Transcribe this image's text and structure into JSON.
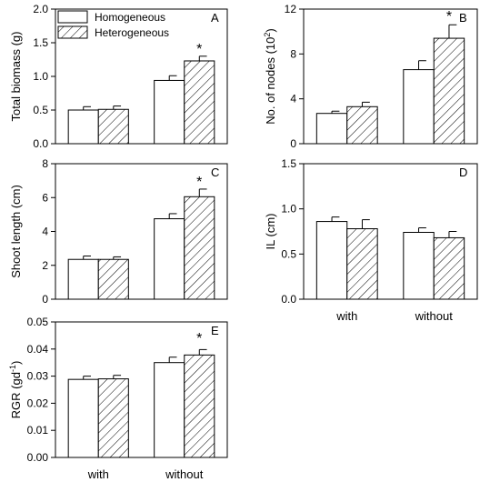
{
  "legend": {
    "entries": [
      {
        "label": "Homogeneous",
        "pattern": "open"
      },
      {
        "label": "Heterogeneous",
        "pattern": "hatched"
      }
    ],
    "placement": "top-left of panel A"
  },
  "categories": [
    "with",
    "without"
  ],
  "chart_data": [
    {
      "panel": "A",
      "type": "bar",
      "ylabel": "Total biomass (g)",
      "ylim": [
        0,
        2.0
      ],
      "yticks": [
        "0.0",
        "0.5",
        "1.0",
        "1.5",
        "2.0"
      ],
      "categories": [
        "with",
        "without"
      ],
      "series": [
        {
          "name": "Homogeneous",
          "values": [
            0.5,
            0.94
          ],
          "errors": [
            0.05,
            0.07
          ]
        },
        {
          "name": "Heterogeneous",
          "values": [
            0.51,
            1.23
          ],
          "errors": [
            0.05,
            0.07
          ]
        }
      ],
      "annotations": [
        {
          "text": "*",
          "category": "without"
        }
      ]
    },
    {
      "panel": "B",
      "type": "bar",
      "ylabel": "No. of nodes (10",
      "ylabel_sup": "2",
      "ylabel_end": ")",
      "ylim": [
        0,
        12
      ],
      "yticks": [
        "0",
        "4",
        "8",
        "12"
      ],
      "categories": [
        "with",
        "without"
      ],
      "series": [
        {
          "name": "Homogeneous",
          "values": [
            2.7,
            6.6
          ],
          "errors": [
            0.2,
            0.8
          ]
        },
        {
          "name": "Heterogeneous",
          "values": [
            3.3,
            9.4
          ],
          "errors": [
            0.4,
            1.2
          ]
        }
      ],
      "annotations": [
        {
          "text": "*",
          "category": "without"
        }
      ]
    },
    {
      "panel": "C",
      "type": "bar",
      "ylabel": "Shoot length (cm)",
      "ylim": [
        0,
        8
      ],
      "yticks": [
        "0",
        "2",
        "4",
        "6",
        "8"
      ],
      "categories": [
        "with",
        "without"
      ],
      "series": [
        {
          "name": "Homogeneous",
          "values": [
            2.35,
            4.75
          ],
          "errors": [
            0.2,
            0.3
          ]
        },
        {
          "name": "Heterogeneous",
          "values": [
            2.35,
            6.05
          ],
          "errors": [
            0.15,
            0.45
          ]
        }
      ],
      "annotations": [
        {
          "text": "*",
          "category": "without"
        }
      ]
    },
    {
      "panel": "D",
      "type": "bar",
      "ylabel": "IL (cm)",
      "ylim": [
        0,
        1.5
      ],
      "yticks": [
        "0.0",
        "0.5",
        "1.0",
        "1.5"
      ],
      "categories": [
        "with",
        "without"
      ],
      "series": [
        {
          "name": "Homogeneous",
          "values": [
            0.86,
            0.74
          ],
          "errors": [
            0.05,
            0.05
          ]
        },
        {
          "name": "Heterogeneous",
          "values": [
            0.78,
            0.68
          ],
          "errors": [
            0.1,
            0.07
          ]
        }
      ],
      "annotations": []
    },
    {
      "panel": "E",
      "type": "bar",
      "ylabel": "RGR (gd",
      "ylabel_sup": "-1",
      "ylabel_end": ")",
      "ylim": [
        0,
        0.05
      ],
      "yticks": [
        "0.00",
        "0.01",
        "0.02",
        "0.03",
        "0.04",
        "0.05"
      ],
      "categories": [
        "with",
        "without"
      ],
      "series": [
        {
          "name": "Homogeneous",
          "values": [
            0.0288,
            0.035
          ],
          "errors": [
            0.0012,
            0.002
          ]
        },
        {
          "name": "Heterogeneous",
          "values": [
            0.029,
            0.0378
          ],
          "errors": [
            0.0013,
            0.002
          ]
        }
      ],
      "annotations": [
        {
          "text": "*",
          "category": "without"
        }
      ]
    }
  ]
}
